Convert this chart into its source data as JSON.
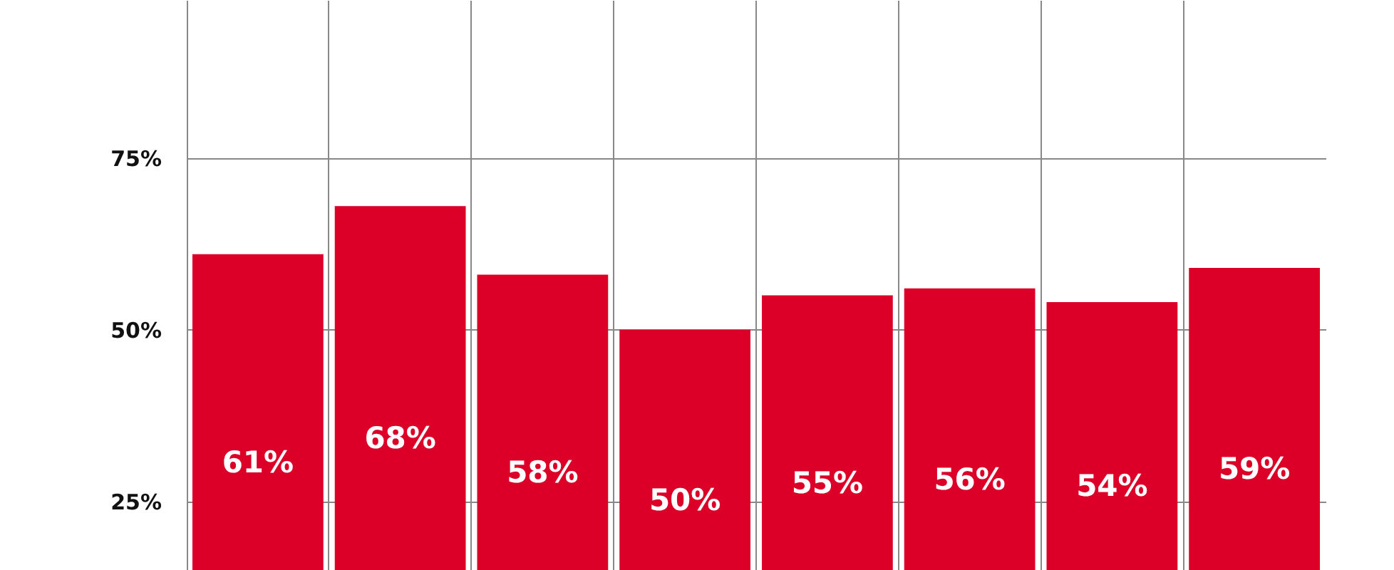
{
  "chart_data": {
    "type": "bar",
    "categories": [
      null,
      null,
      null,
      null,
      null,
      null,
      null,
      null
    ],
    "values": [
      61,
      68,
      58,
      50,
      55,
      56,
      54,
      59
    ],
    "value_labels": [
      "61%",
      "68%",
      "58%",
      "50%",
      "55%",
      "56%",
      "54%",
      "59%"
    ],
    "color": "#dc0028",
    "ylim": [
      15,
      98
    ],
    "yticks": [
      {
        "value": 25,
        "label": "25%"
      },
      {
        "value": 50,
        "label": "50%"
      },
      {
        "value": 75,
        "label": "75%"
      }
    ],
    "grid": true
  }
}
